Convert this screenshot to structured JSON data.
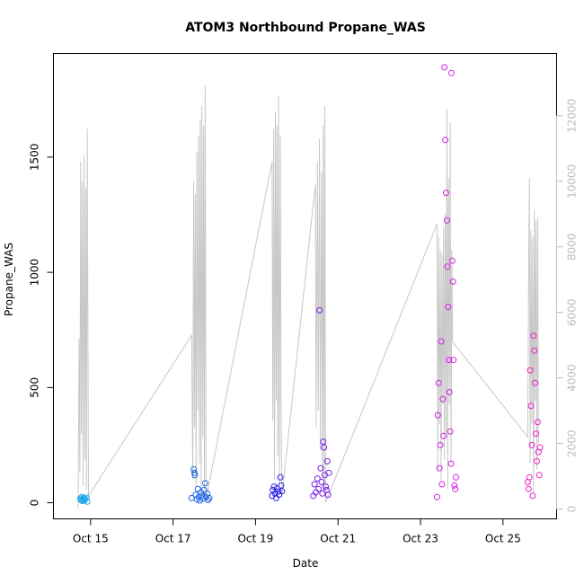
{
  "chart_data": {
    "type": "scatter",
    "title": "ATOM3 Northbound Propane_WAS",
    "xlabel": "Date",
    "ylabel": "Propane_WAS",
    "x_ticks": [
      "Oct 15",
      "Oct 17",
      "Oct 19",
      "Oct 21",
      "Oct 23",
      "Oct 25"
    ],
    "x_tick_days": [
      15,
      17,
      19,
      21,
      23,
      25
    ],
    "xlim_days": [
      14.1,
      26.3
    ],
    "ylim": [
      -70,
      1950
    ],
    "y_ticks": [
      0,
      500,
      1000,
      1500
    ],
    "y2_ticks": [
      0,
      2000,
      4000,
      6000,
      8000,
      10000,
      12000
    ],
    "y2lim": [
      -300,
      13900
    ],
    "grid": false,
    "colors": {
      "axis": "#000000",
      "secondary_axis": "#bdbdbd",
      "altitude_line": "#c8c8c8"
    },
    "series": [
      {
        "color": "#1aa3e8",
        "points": [
          [
            14.75,
            18
          ],
          [
            14.77,
            12
          ],
          [
            14.79,
            25
          ],
          [
            14.8,
            8
          ],
          [
            14.82,
            15
          ],
          [
            14.83,
            20
          ],
          [
            14.85,
            10
          ],
          [
            14.87,
            17
          ],
          [
            14.9,
            22
          ],
          [
            14.92,
            5
          ]
        ]
      },
      {
        "color": "#1f66e5",
        "points": [
          [
            17.45,
            20
          ],
          [
            17.5,
            145
          ],
          [
            17.52,
            130
          ],
          [
            17.53,
            120
          ],
          [
            17.55,
            35
          ],
          [
            17.58,
            15
          ],
          [
            17.6,
            60
          ],
          [
            17.62,
            25
          ],
          [
            17.65,
            10
          ],
          [
            17.68,
            45
          ],
          [
            17.7,
            30
          ],
          [
            17.72,
            18
          ],
          [
            17.75,
            55
          ],
          [
            17.78,
            85
          ],
          [
            17.8,
            25
          ],
          [
            17.83,
            40
          ],
          [
            17.85,
            12
          ],
          [
            17.88,
            20
          ]
        ]
      },
      {
        "color": "#2b1fe8",
        "points": [
          [
            19.4,
            30
          ],
          [
            19.42,
            55
          ],
          [
            19.45,
            70
          ],
          [
            19.47,
            40
          ],
          [
            19.5,
            20
          ],
          [
            19.52,
            62
          ],
          [
            19.55,
            48
          ],
          [
            19.57,
            35
          ],
          [
            19.6,
            110
          ],
          [
            19.62,
            75
          ],
          [
            19.64,
            50
          ]
        ]
      },
      {
        "color": "#7a1fe8",
        "points": [
          [
            20.4,
            30
          ],
          [
            20.43,
            80
          ],
          [
            20.46,
            45
          ],
          [
            20.5,
            105
          ],
          [
            20.53,
            60
          ],
          [
            20.55,
            835
          ],
          [
            20.58,
            150
          ],
          [
            20.6,
            90
          ],
          [
            20.62,
            40
          ],
          [
            20.64,
            265
          ],
          [
            20.66,
            240
          ],
          [
            20.68,
            120
          ],
          [
            20.7,
            70
          ],
          [
            20.72,
            55
          ],
          [
            20.74,
            180
          ],
          [
            20.76,
            35
          ],
          [
            20.78,
            130
          ]
        ]
      },
      {
        "color": "#d61fe8",
        "points": [
          [
            23.4,
            25
          ],
          [
            23.42,
            380
          ],
          [
            23.44,
            520
          ],
          [
            23.46,
            150
          ],
          [
            23.48,
            250
          ],
          [
            23.5,
            700
          ],
          [
            23.52,
            80
          ],
          [
            23.54,
            450
          ],
          [
            23.56,
            290
          ],
          [
            23.58,
            1890
          ],
          [
            23.6,
            1575
          ],
          [
            23.62,
            1345
          ],
          [
            23.64,
            1225
          ],
          [
            23.65,
            1025
          ],
          [
            23.67,
            850
          ],
          [
            23.69,
            620
          ],
          [
            23.7,
            480
          ],
          [
            23.72,
            310
          ],
          [
            23.74,
            170
          ],
          [
            23.75,
            1865
          ],
          [
            23.77,
            1050
          ],
          [
            23.79,
            960
          ],
          [
            23.8,
            620
          ],
          [
            23.82,
            75
          ],
          [
            23.84,
            60
          ],
          [
            23.86,
            110
          ]
        ]
      },
      {
        "color": "#ee1fc8",
        "points": [
          [
            25.6,
            90
          ],
          [
            25.62,
            60
          ],
          [
            25.64,
            110
          ],
          [
            25.66,
            575
          ],
          [
            25.68,
            420
          ],
          [
            25.7,
            250
          ],
          [
            25.72,
            30
          ],
          [
            25.74,
            725
          ],
          [
            25.76,
            660
          ],
          [
            25.78,
            520
          ],
          [
            25.8,
            300
          ],
          [
            25.82,
            180
          ],
          [
            25.84,
            350
          ],
          [
            25.86,
            220
          ],
          [
            25.88,
            120
          ],
          [
            25.9,
            240
          ]
        ]
      }
    ],
    "altitude_trace": {
      "axis": "secondary",
      "points": [
        [
          14.7,
          0
        ],
        [
          14.72,
          5200
        ],
        [
          14.74,
          1100
        ],
        [
          14.76,
          10600
        ],
        [
          14.78,
          2300
        ],
        [
          14.8,
          10000
        ],
        [
          14.82,
          700
        ],
        [
          14.84,
          10800
        ],
        [
          14.86,
          1500
        ],
        [
          14.88,
          9800
        ],
        [
          14.9,
          600
        ],
        [
          14.92,
          11600
        ],
        [
          14.95,
          400
        ],
        [
          17.45,
          5300
        ],
        [
          17.48,
          900
        ],
        [
          17.5,
          10000
        ],
        [
          17.52,
          2500
        ],
        [
          17.54,
          9600
        ],
        [
          17.56,
          700
        ],
        [
          17.58,
          10900
        ],
        [
          17.6,
          3000
        ],
        [
          17.62,
          11400
        ],
        [
          17.64,
          1400
        ],
        [
          17.66,
          11900
        ],
        [
          17.68,
          500
        ],
        [
          17.7,
          12300
        ],
        [
          17.72,
          2200
        ],
        [
          17.74,
          11700
        ],
        [
          17.76,
          600
        ],
        [
          17.78,
          12900
        ],
        [
          17.8,
          300
        ],
        [
          19.4,
          10600
        ],
        [
          19.42,
          2700
        ],
        [
          19.44,
          11600
        ],
        [
          19.46,
          900
        ],
        [
          19.48,
          12100
        ],
        [
          19.5,
          3300
        ],
        [
          19.52,
          11700
        ],
        [
          19.54,
          1600
        ],
        [
          19.56,
          12600
        ],
        [
          19.58,
          700
        ],
        [
          19.6,
          11400
        ],
        [
          19.62,
          2800
        ],
        [
          19.64,
          400
        ],
        [
          20.45,
          9900
        ],
        [
          20.47,
          2500
        ],
        [
          20.5,
          10600
        ],
        [
          20.52,
          3000
        ],
        [
          20.55,
          11300
        ],
        [
          20.57,
          1800
        ],
        [
          20.6,
          10300
        ],
        [
          20.62,
          900
        ],
        [
          20.64,
          11700
        ],
        [
          20.66,
          500
        ],
        [
          20.68,
          12300
        ],
        [
          20.7,
          200
        ],
        [
          23.4,
          8700
        ],
        [
          23.42,
          1200
        ],
        [
          23.44,
          8300
        ],
        [
          23.46,
          2600
        ],
        [
          23.48,
          7900
        ],
        [
          23.5,
          900
        ],
        [
          23.52,
          7800
        ],
        [
          23.54,
          3200
        ],
        [
          23.56,
          8600
        ],
        [
          23.58,
          1500
        ],
        [
          23.6,
          9000
        ],
        [
          23.62,
          2200
        ],
        [
          23.64,
          12200
        ],
        [
          23.66,
          600
        ],
        [
          23.68,
          10100
        ],
        [
          23.7,
          3200
        ],
        [
          23.72,
          11800
        ],
        [
          23.74,
          1400
        ],
        [
          23.76,
          7900
        ],
        [
          23.78,
          5100
        ],
        [
          25.6,
          2200
        ],
        [
          25.62,
          6700
        ],
        [
          25.64,
          10100
        ],
        [
          25.66,
          1400
        ],
        [
          25.68,
          8500
        ],
        [
          25.7,
          2600
        ],
        [
          25.72,
          8300
        ],
        [
          25.74,
          500
        ],
        [
          25.76,
          9100
        ],
        [
          25.78,
          3300
        ],
        [
          25.8,
          8800
        ],
        [
          25.82,
          1200
        ],
        [
          25.84,
          8900
        ],
        [
          25.86,
          2000
        ]
      ]
    }
  }
}
